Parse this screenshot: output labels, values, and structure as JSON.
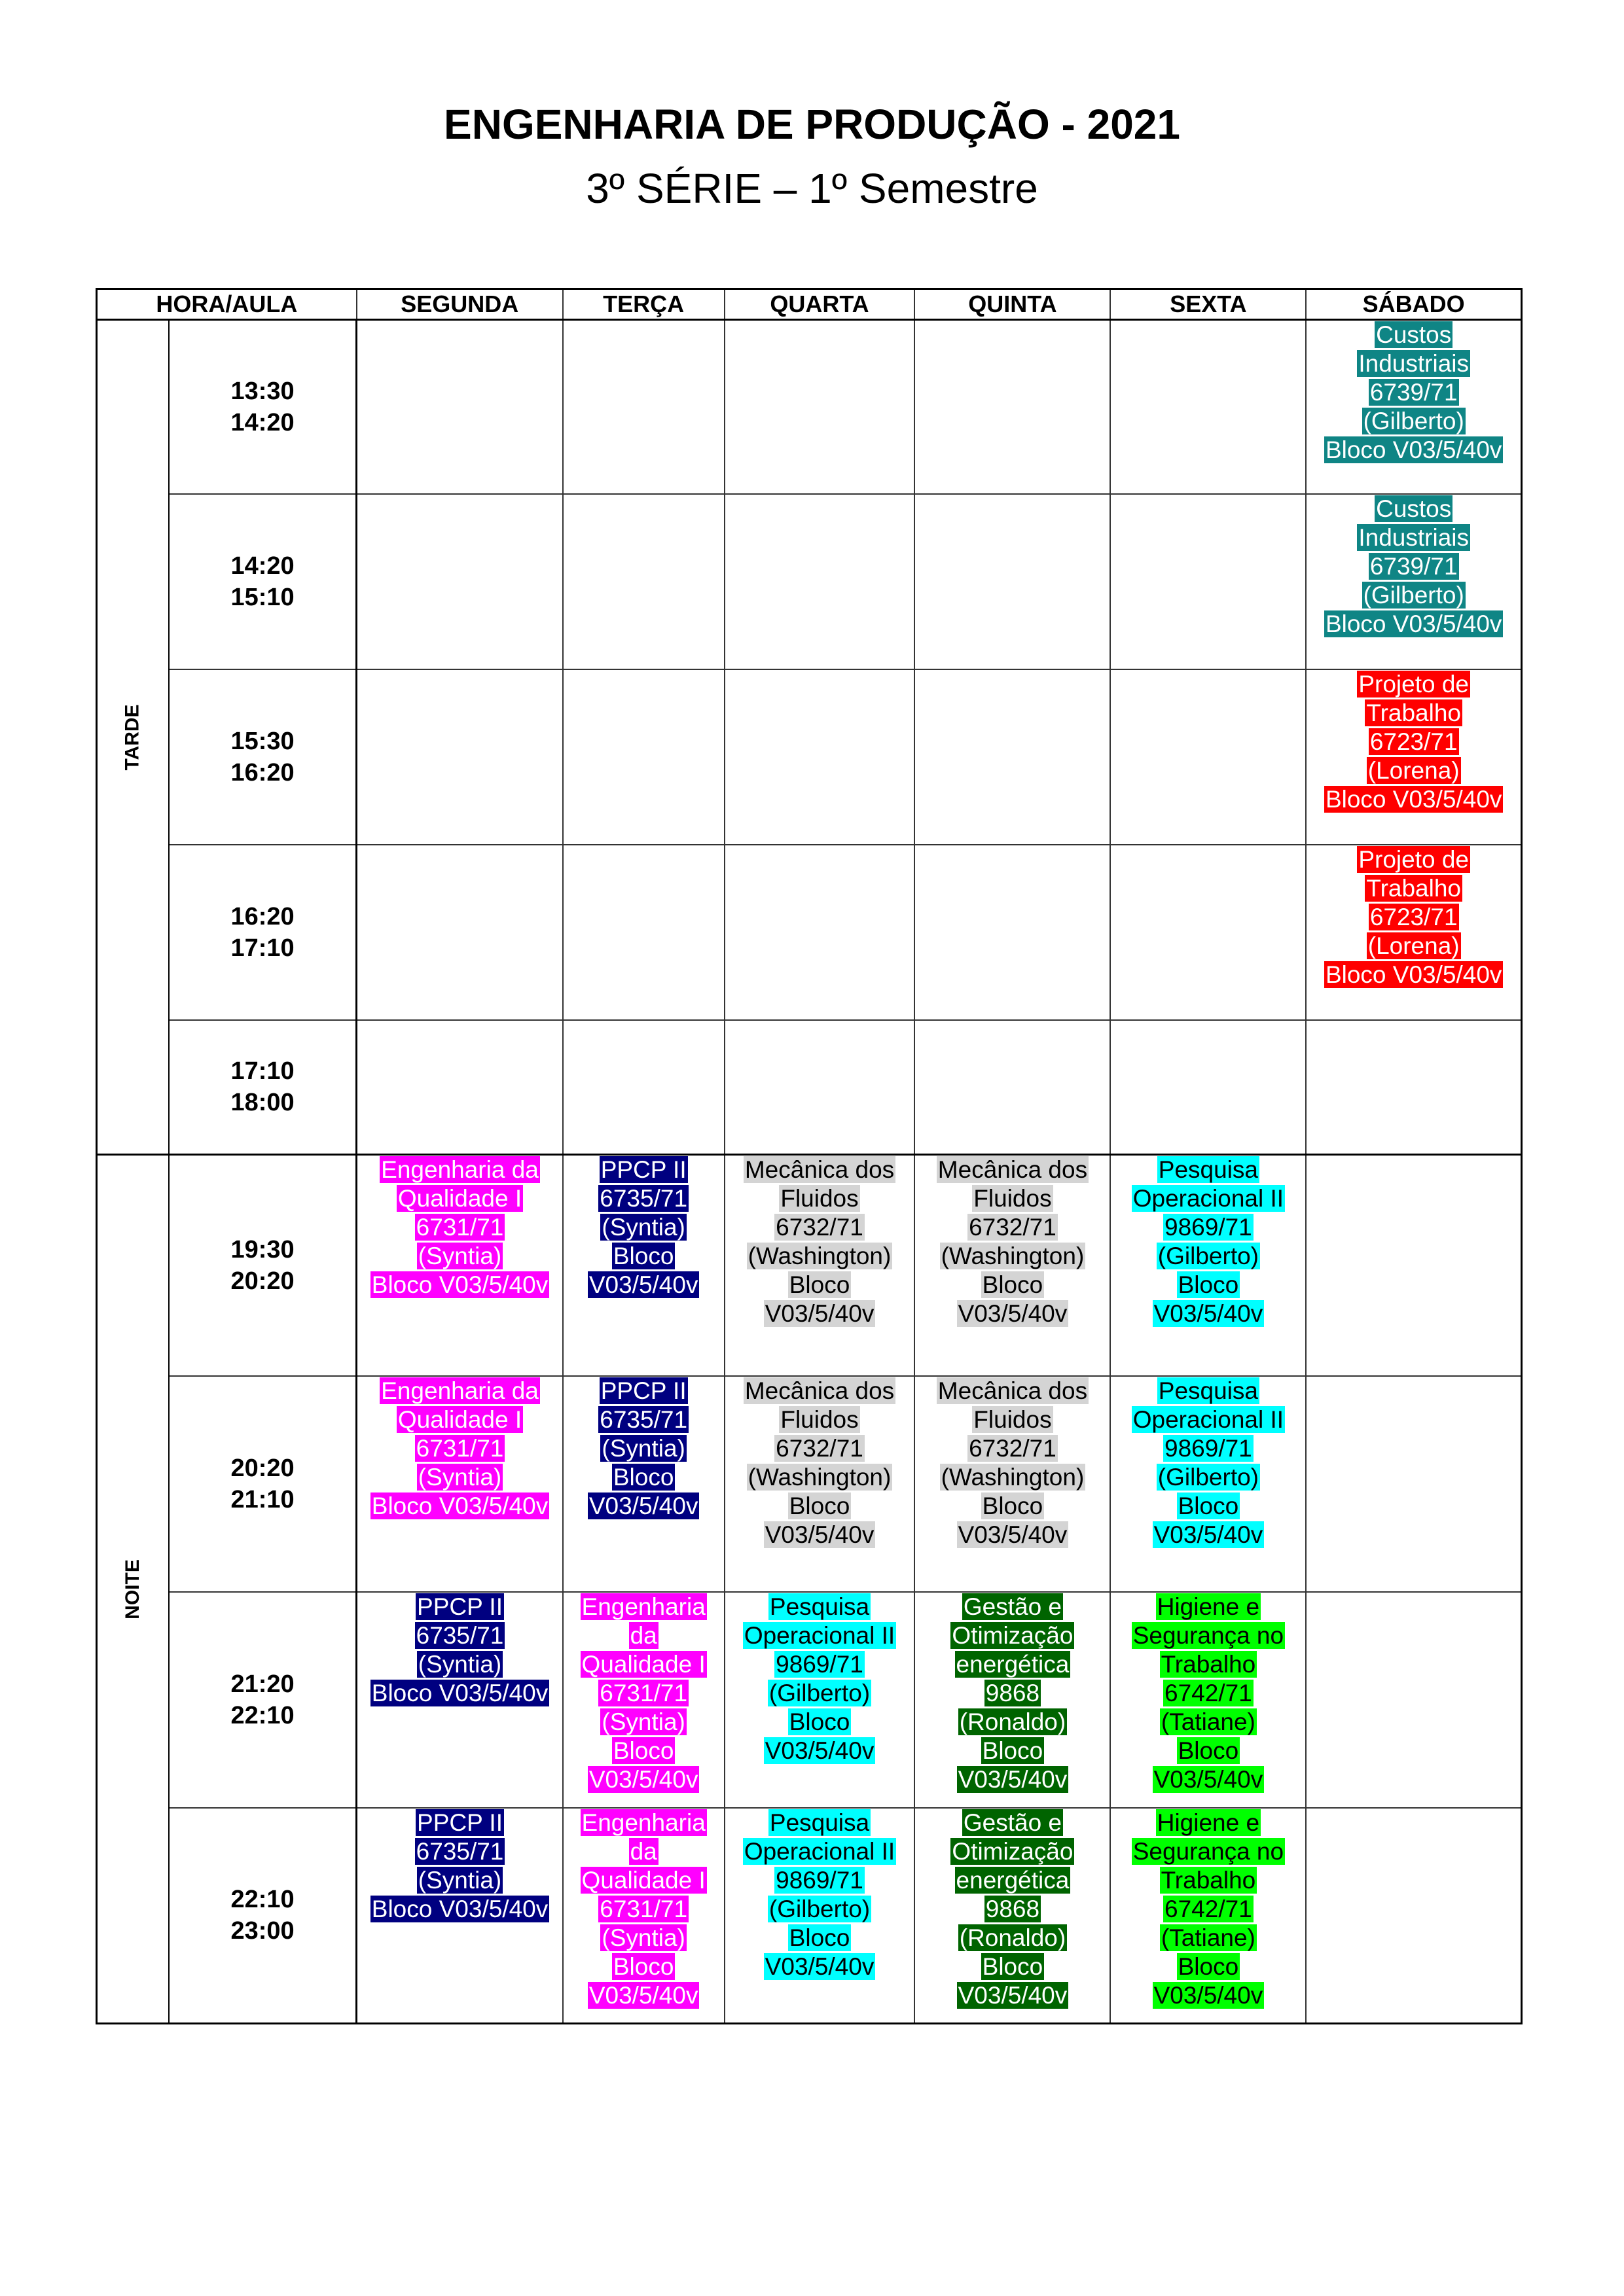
{
  "title": "ENGENHARIA DE PRODUÇÃO - 2021",
  "subtitle": "3º SÉRIE – 1º Semestre",
  "columns": [
    "HORA/AULA",
    "SEGUNDA",
    "TERÇA",
    "QUARTA",
    "QUINTA",
    "SEXTA",
    "SÁBADO"
  ],
  "periods": {
    "tarde": "TARDE",
    "noite": "NOITE"
  },
  "colors": {
    "teal": "#0f8585",
    "red": "#ff0000",
    "magenta": "#ff00ff",
    "navy": "#000080",
    "gray": "#d4d4d4",
    "cyan": "#00ffff",
    "darkgreen": "#006400",
    "green": "#00ff00"
  },
  "rows": [
    {
      "start": "13:30",
      "end": "14:20",
      "cells": [
        "",
        "",
        "",
        "",
        "",
        "custos"
      ]
    },
    {
      "start": "14:20",
      "end": "15:10",
      "cells": [
        "",
        "",
        "",
        "",
        "",
        "custos"
      ]
    },
    {
      "start": "15:30",
      "end": "16:20",
      "cells": [
        "",
        "",
        "",
        "",
        "",
        "projeto"
      ]
    },
    {
      "start": "16:20",
      "end": "17:10",
      "cells": [
        "",
        "",
        "",
        "",
        "",
        "projeto"
      ]
    },
    {
      "start": "17:10",
      "end": "18:00",
      "cells": [
        "",
        "",
        "",
        "",
        "",
        ""
      ]
    },
    {
      "start": "19:30",
      "end": "20:20",
      "cells": [
        "eq",
        "ppcp_t",
        "mec",
        "mec",
        "po",
        ""
      ]
    },
    {
      "start": "20:20",
      "end": "21:10",
      "cells": [
        "eq",
        "ppcp_t",
        "mec",
        "mec",
        "po",
        ""
      ]
    },
    {
      "start": "21:20",
      "end": "22:10",
      "cells": [
        "ppcp_s",
        "eq_t",
        "po_q",
        "gest",
        "hig",
        ""
      ]
    },
    {
      "start": "22:10",
      "end": "23:00",
      "cells": [
        "ppcp_s",
        "eq_t",
        "po_q",
        "gest",
        "hig",
        ""
      ]
    }
  ],
  "subjects": {
    "custos": {
      "lines": [
        "Custos",
        "Industriais",
        "6739/71",
        "(Gilberto)",
        "Bloco V03/5/40v"
      ],
      "bg": "#0f8585",
      "fg": "#ffffff"
    },
    "projeto": {
      "lines": [
        "Projeto de",
        "Trabalho",
        "6723/71",
        "(Lorena)",
        "Bloco V03/5/40v"
      ],
      "bg": "#ff0000",
      "fg": "#ffffff"
    },
    "eq": {
      "lines": [
        "Engenharia da",
        "Qualidade I",
        "6731/71",
        "(Syntia)",
        "Bloco V03/5/40v"
      ],
      "bg": "#ff00ff",
      "fg": "#ffffff"
    },
    "ppcp_t": {
      "lines": [
        "PPCP II",
        "6735/71",
        "(Syntia)",
        "Bloco",
        "V03/5/40v"
      ],
      "bg": "#000080",
      "fg": "#ffffff"
    },
    "mec": {
      "lines": [
        "Mecânica dos",
        "Fluidos",
        "6732/71",
        "(Washington)",
        "Bloco",
        "V03/5/40v"
      ],
      "bg": "#d4d4d4",
      "fg": "#000000"
    },
    "po": {
      "lines": [
        "Pesquisa",
        "Operacional II",
        "9869/71",
        "(Gilberto)",
        "Bloco",
        "V03/5/40v"
      ],
      "bg": "#00ffff",
      "fg": "#000000"
    },
    "ppcp_s": {
      "lines": [
        "PPCP II",
        "6735/71",
        "(Syntia)",
        "Bloco V03/5/40v"
      ],
      "bg": "#000080",
      "fg": "#ffffff"
    },
    "eq_t": {
      "lines": [
        "Engenharia",
        "da",
        "Qualidade I",
        "6731/71",
        "(Syntia)",
        "Bloco",
        "V03/5/40v"
      ],
      "bg": "#ff00ff",
      "fg": "#ffffff"
    },
    "po_q": {
      "lines": [
        "Pesquisa",
        "Operacional II",
        "9869/71",
        "(Gilberto)",
        "Bloco",
        "V03/5/40v"
      ],
      "bg": "#00ffff",
      "fg": "#000000"
    },
    "gest": {
      "lines": [
        "Gestão e",
        "Otimização",
        "energética",
        "9868",
        "(Ronaldo)",
        "Bloco",
        "V03/5/40v"
      ],
      "bg": "#006400",
      "fg": "#ffffff"
    },
    "hig": {
      "lines": [
        "Higiene e",
        "Segurança no",
        "Trabalho",
        "6742/71",
        "(Tatiane)",
        "Bloco",
        "V03/5/40v"
      ],
      "bg": "#00ff00",
      "fg": "#000000"
    }
  }
}
